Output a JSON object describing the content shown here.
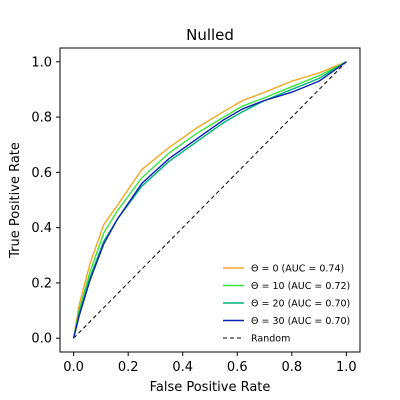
{
  "chart_data": {
    "type": "line",
    "title": "Nulled",
    "xlabel": "False Positive Rate",
    "ylabel": "True Positive Rate",
    "xlim": [
      -0.05,
      1.05
    ],
    "ylim": [
      -0.05,
      1.05
    ],
    "xticks": [
      "0.0",
      "0.2",
      "0.4",
      "0.6",
      "0.8",
      "1.0"
    ],
    "yticks": [
      "0.0",
      "0.2",
      "0.4",
      "0.6",
      "0.8",
      "1.0"
    ],
    "grid": false,
    "legend_position": "lower-right",
    "series": [
      {
        "name": "Θ = 0 (AUC = 0.74)",
        "color": "#f5a623",
        "style": "solid",
        "x": [
          0.0,
          0.02,
          0.06,
          0.11,
          0.16,
          0.25,
          0.35,
          0.45,
          0.55,
          0.62,
          0.7,
          0.8,
          0.9,
          1.0
        ],
        "y": [
          0.0,
          0.12,
          0.27,
          0.41,
          0.48,
          0.61,
          0.69,
          0.76,
          0.82,
          0.86,
          0.89,
          0.93,
          0.96,
          1.0
        ]
      },
      {
        "name": "Θ = 10 (AUC = 0.72)",
        "color": "#3ee23e",
        "style": "solid",
        "x": [
          0.0,
          0.02,
          0.06,
          0.11,
          0.16,
          0.25,
          0.35,
          0.45,
          0.55,
          0.62,
          0.7,
          0.8,
          0.9,
          1.0
        ],
        "y": [
          0.0,
          0.1,
          0.24,
          0.38,
          0.46,
          0.58,
          0.67,
          0.74,
          0.8,
          0.84,
          0.87,
          0.91,
          0.95,
          1.0
        ]
      },
      {
        "name": "Θ = 20 (AUC = 0.70)",
        "color": "#00b37a",
        "style": "solid",
        "x": [
          0.0,
          0.02,
          0.06,
          0.11,
          0.16,
          0.25,
          0.35,
          0.45,
          0.55,
          0.62,
          0.7,
          0.8,
          0.9,
          1.0
        ],
        "y": [
          0.0,
          0.09,
          0.22,
          0.35,
          0.43,
          0.55,
          0.64,
          0.71,
          0.78,
          0.82,
          0.86,
          0.9,
          0.94,
          1.0
        ]
      },
      {
        "name": "Θ = 30 (AUC = 0.70)",
        "color": "#0a1fb0",
        "style": "solid",
        "x": [
          0.0,
          0.02,
          0.06,
          0.11,
          0.16,
          0.25,
          0.35,
          0.45,
          0.55,
          0.62,
          0.7,
          0.8,
          0.9,
          1.0
        ],
        "y": [
          0.0,
          0.08,
          0.21,
          0.34,
          0.43,
          0.56,
          0.65,
          0.72,
          0.79,
          0.83,
          0.86,
          0.89,
          0.93,
          1.0
        ]
      },
      {
        "name": "Random",
        "color": "#000000",
        "style": "dashed",
        "x": [
          0.0,
          1.0
        ],
        "y": [
          0.0,
          1.0
        ]
      }
    ]
  }
}
